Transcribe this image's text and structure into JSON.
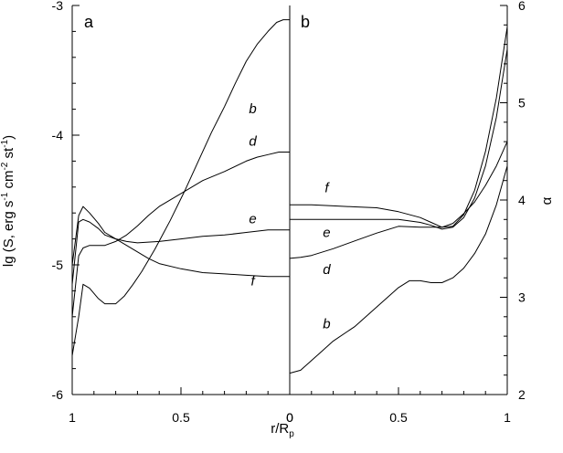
{
  "chart_data": [
    {
      "type": "line",
      "panel_label": "a",
      "x_ticks": [
        "1",
        "0.5",
        "0"
      ],
      "xlim": [
        1,
        0
      ],
      "ylim": [
        -6,
        -3
      ],
      "y_ticks": [
        "-3",
        "-4",
        "-5",
        "-6"
      ],
      "ylabel_parts": {
        "prefix": "lg (S, erg s",
        "sup1": "-1",
        "mid1": " cm",
        "sup2": "-2",
        "mid2": " st",
        "sup3": "-1",
        "suffix": ")"
      },
      "series": [
        {
          "name": "b",
          "label_pos": [
            0.17,
            -3.83
          ],
          "x": [
            1.0,
            0.97,
            0.95,
            0.92,
            0.88,
            0.85,
            0.8,
            0.76,
            0.72,
            0.68,
            0.62,
            0.55,
            0.48,
            0.42,
            0.36,
            0.3,
            0.25,
            0.2,
            0.15,
            0.1,
            0.06,
            0.03,
            0.0
          ],
          "y": [
            -5.7,
            -5.4,
            -5.15,
            -5.18,
            -5.26,
            -5.3,
            -5.3,
            -5.24,
            -5.15,
            -5.05,
            -4.88,
            -4.66,
            -4.42,
            -4.2,
            -3.98,
            -3.78,
            -3.6,
            -3.43,
            -3.3,
            -3.2,
            -3.13,
            -3.11,
            -3.11
          ]
        },
        {
          "name": "d",
          "label_pos": [
            0.17,
            -4.08
          ],
          "x": [
            1.0,
            0.97,
            0.95,
            0.92,
            0.88,
            0.85,
            0.8,
            0.75,
            0.7,
            0.65,
            0.6,
            0.5,
            0.4,
            0.3,
            0.2,
            0.15,
            0.1,
            0.05,
            0.0
          ],
          "y": [
            -5.4,
            -4.93,
            -4.87,
            -4.85,
            -4.85,
            -4.85,
            -4.82,
            -4.77,
            -4.7,
            -4.62,
            -4.55,
            -4.45,
            -4.35,
            -4.28,
            -4.2,
            -4.17,
            -4.15,
            -4.13,
            -4.13
          ]
        },
        {
          "name": "e",
          "label_pos": [
            0.17,
            -4.68
          ],
          "x": [
            1.0,
            0.97,
            0.95,
            0.92,
            0.88,
            0.85,
            0.8,
            0.75,
            0.7,
            0.6,
            0.5,
            0.4,
            0.3,
            0.2,
            0.1,
            0.05,
            0.0
          ],
          "y": [
            -5.15,
            -4.67,
            -4.65,
            -4.67,
            -4.72,
            -4.77,
            -4.8,
            -4.82,
            -4.83,
            -4.82,
            -4.8,
            -4.78,
            -4.77,
            -4.75,
            -4.73,
            -4.73,
            -4.73
          ]
        },
        {
          "name": "f",
          "label_pos": [
            0.17,
            -5.16
          ],
          "x": [
            1.0,
            0.97,
            0.95,
            0.92,
            0.88,
            0.85,
            0.8,
            0.75,
            0.7,
            0.65,
            0.6,
            0.5,
            0.4,
            0.3,
            0.2,
            0.1,
            0.05,
            0.0
          ],
          "y": [
            -5.0,
            -4.62,
            -4.55,
            -4.6,
            -4.68,
            -4.75,
            -4.8,
            -4.85,
            -4.9,
            -4.95,
            -4.99,
            -5.03,
            -5.06,
            -5.07,
            -5.08,
            -5.09,
            -5.09,
            -5.09
          ]
        }
      ]
    },
    {
      "type": "line",
      "panel_label": "b",
      "x_ticks": [
        "0",
        "0.5",
        "1"
      ],
      "xlim": [
        0,
        1
      ],
      "ylim": [
        2,
        6
      ],
      "y_ticks": [
        "6",
        "5",
        "4",
        "3",
        "2"
      ],
      "ylabel": "α",
      "series": [
        {
          "name": "f",
          "label_pos": [
            0.17,
            4.08
          ],
          "x": [
            0.0,
            0.1,
            0.2,
            0.3,
            0.4,
            0.5,
            0.6,
            0.65,
            0.7,
            0.75,
            0.8,
            0.85,
            0.9,
            0.95,
            1.0
          ],
          "y": [
            3.95,
            3.95,
            3.94,
            3.93,
            3.92,
            3.88,
            3.82,
            3.77,
            3.72,
            3.73,
            3.85,
            4.1,
            4.5,
            5.05,
            5.78
          ]
        },
        {
          "name": "e",
          "label_pos": [
            0.17,
            3.62
          ],
          "x": [
            0.0,
            0.1,
            0.2,
            0.3,
            0.4,
            0.5,
            0.6,
            0.65,
            0.7,
            0.75,
            0.8,
            0.85,
            0.9,
            0.95,
            1.0
          ],
          "y": [
            3.8,
            3.8,
            3.8,
            3.8,
            3.8,
            3.8,
            3.77,
            3.74,
            3.7,
            3.72,
            3.82,
            4.02,
            4.35,
            4.85,
            5.55
          ]
        },
        {
          "name": "d",
          "label_pos": [
            0.17,
            3.24
          ],
          "x": [
            0.0,
            0.05,
            0.1,
            0.2,
            0.3,
            0.4,
            0.5,
            0.6,
            0.7,
            0.75,
            0.8,
            0.85,
            0.9,
            0.95,
            1.0
          ],
          "y": [
            3.4,
            3.41,
            3.43,
            3.5,
            3.58,
            3.66,
            3.73,
            3.72,
            3.72,
            3.76,
            3.86,
            3.98,
            4.15,
            4.35,
            4.6
          ]
        },
        {
          "name": "b",
          "label_pos": [
            0.17,
            2.68
          ],
          "x": [
            0.0,
            0.05,
            0.1,
            0.15,
            0.2,
            0.3,
            0.4,
            0.45,
            0.5,
            0.55,
            0.6,
            0.65,
            0.7,
            0.75,
            0.8,
            0.85,
            0.9,
            0.95,
            1.0
          ],
          "y": [
            2.22,
            2.25,
            2.35,
            2.45,
            2.55,
            2.7,
            2.9,
            3.0,
            3.1,
            3.17,
            3.17,
            3.15,
            3.15,
            3.2,
            3.3,
            3.45,
            3.65,
            3.95,
            4.35
          ]
        }
      ]
    }
  ],
  "xlabel_main": "r/R",
  "xlabel_sub": "p"
}
